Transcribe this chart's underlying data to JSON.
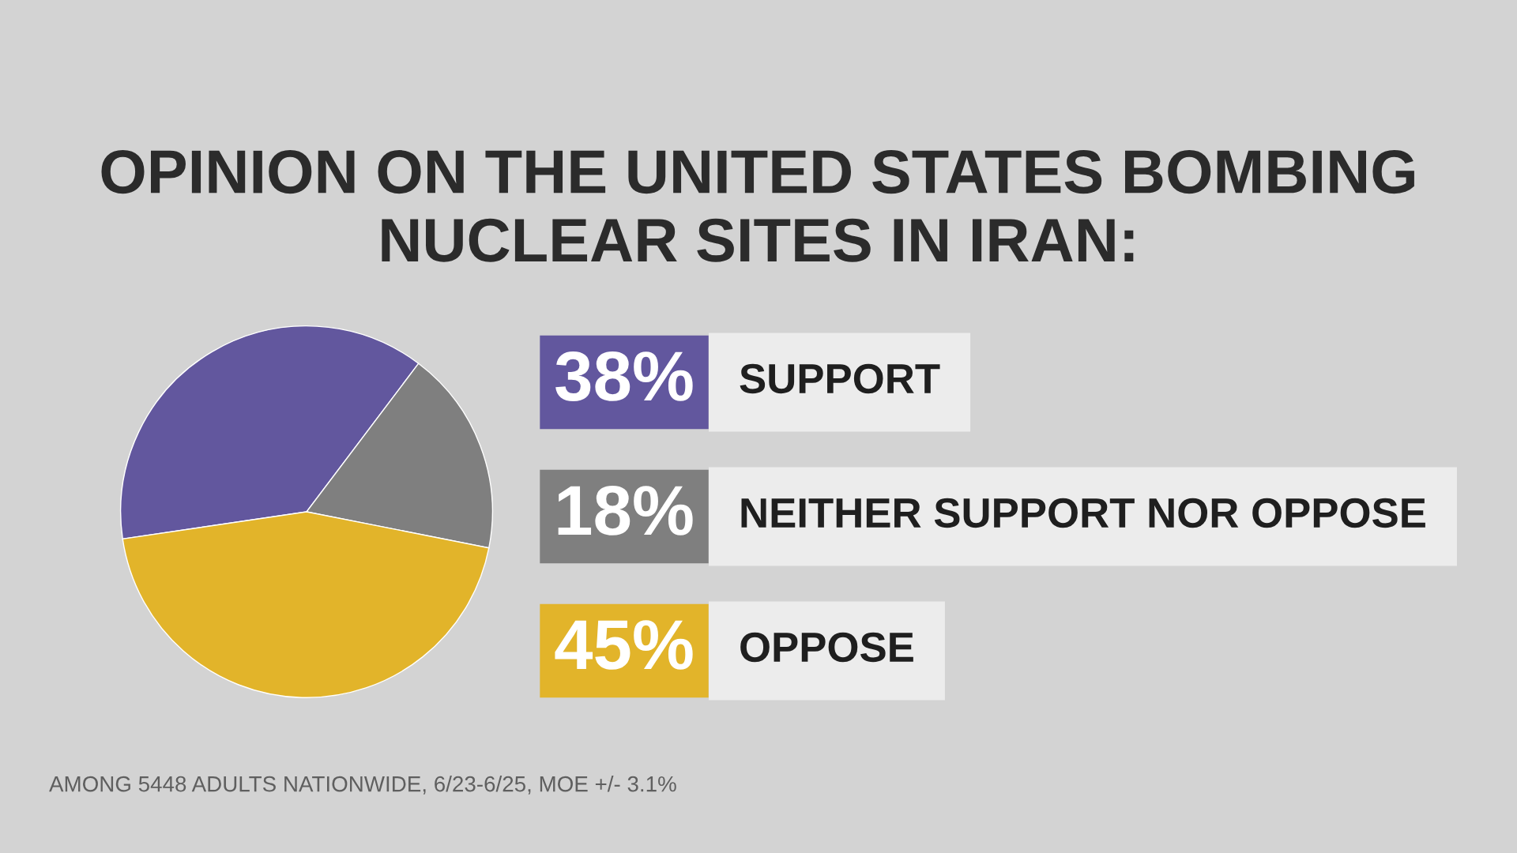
{
  "chart_data": {
    "type": "pie",
    "title": "OPINION ON THE UNITED STATES BOMBING NUCLEAR SITES IN IRAN:",
    "categories": [
      "SUPPORT",
      "NEITHER SUPPORT NOR OPPOSE",
      "OPPOSE"
    ],
    "values": [
      38,
      18,
      45
    ],
    "value_labels": [
      "38%",
      "18%",
      "45%"
    ],
    "colors": [
      "#62579e",
      "#7f7f7f",
      "#e2b42a"
    ],
    "legend": "right",
    "annotations": [
      "AMONG 5448 ADULTS NATIONWIDE, 6/23-6/25, MOE +/- 3.1%"
    ]
  }
}
